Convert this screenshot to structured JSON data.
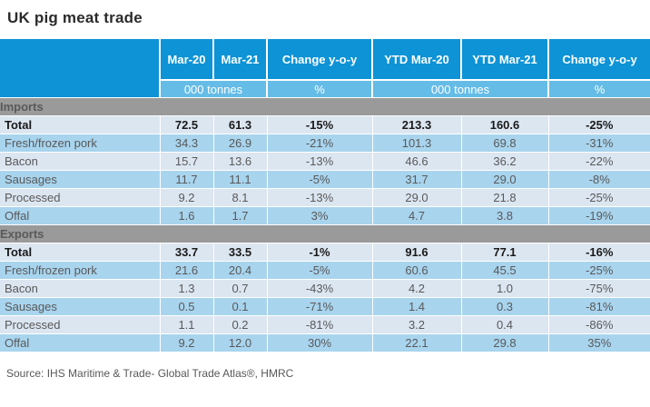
{
  "title": "UK pig meat trade",
  "source": "Source: IHS Maritime & Trade- Global Trade Atlas®, HMRC",
  "colors": {
    "header_blue": "#0d93d6",
    "units_blue": "#65bce6",
    "section_gray": "#9a9a9a",
    "row_pale_blue": "#dce6f1",
    "row_light_blue": "#a8d4ee",
    "body_text": "#595959",
    "total_text": "#1a1a1a"
  },
  "chart_data": {
    "type": "table",
    "title": "UK pig meat trade",
    "columns": [
      "Mar-20",
      "Mar-21",
      "Change y-o-y",
      "YTD Mar-20",
      "YTD Mar-21",
      "Change y-o-y"
    ],
    "units": [
      "000 tonnes",
      "%",
      "000 tonnes",
      "%"
    ],
    "sections": [
      {
        "name": "Imports",
        "rows": [
          {
            "label": "Total",
            "bold": true,
            "values": [
              "72.5",
              "61.3",
              "-15%",
              "213.3",
              "160.6",
              "-25%"
            ]
          },
          {
            "label": "Fresh/frozen pork",
            "values": [
              "34.3",
              "26.9",
              "-21%",
              "101.3",
              "69.8",
              "-31%"
            ]
          },
          {
            "label": "Bacon",
            "values": [
              "15.7",
              "13.6",
              "-13%",
              "46.6",
              "36.2",
              "-22%"
            ]
          },
          {
            "label": "Sausages",
            "values": [
              "11.7",
              "11.1",
              "-5%",
              "31.7",
              "29.0",
              "-8%"
            ]
          },
          {
            "label": "Processed",
            "values": [
              "9.2",
              "8.1",
              "-13%",
              "29.0",
              "21.8",
              "-25%"
            ]
          },
          {
            "label": "Offal",
            "values": [
              "1.6",
              "1.7",
              "3%",
              "4.7",
              "3.8",
              "-19%"
            ]
          }
        ]
      },
      {
        "name": "Exports",
        "rows": [
          {
            "label": "Total",
            "bold": true,
            "values": [
              "33.7",
              "33.5",
              "-1%",
              "91.6",
              "77.1",
              "-16%"
            ]
          },
          {
            "label": "Fresh/frozen pork",
            "values": [
              "21.6",
              "20.4",
              "-5%",
              "60.6",
              "45.5",
              "-25%"
            ]
          },
          {
            "label": "Bacon",
            "values": [
              "1.3",
              "0.7",
              "-43%",
              "4.2",
              "1.0",
              "-75%"
            ]
          },
          {
            "label": "Sausages",
            "values": [
              "0.5",
              "0.1",
              "-71%",
              "1.4",
              "0.3",
              "-81%"
            ]
          },
          {
            "label": "Processed",
            "values": [
              "1.1",
              "0.2",
              "-81%",
              "3.2",
              "0.4",
              "-86%"
            ]
          },
          {
            "label": "Offal",
            "values": [
              "9.2",
              "12.0",
              "30%",
              "22.1",
              "29.8",
              "35%"
            ]
          }
        ]
      }
    ]
  }
}
